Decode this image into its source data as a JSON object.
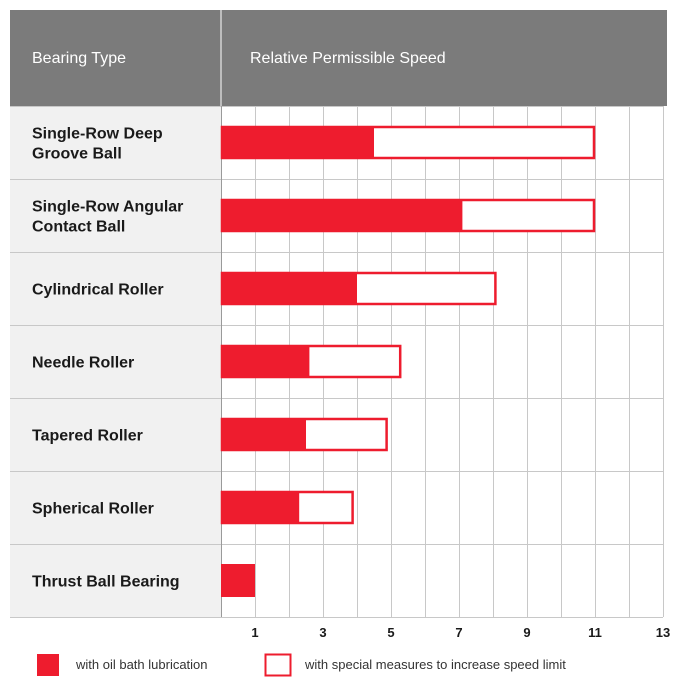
{
  "chart_data": {
    "type": "bar",
    "header": {
      "col1": "Bearing Type",
      "col2": "Relative Permissible Speed"
    },
    "categories": [
      "Single-Row Deep Groove Ball",
      "Single-Row Angular Contact Ball",
      "Cylindrical Roller",
      "Needle Roller",
      "Tapered Roller",
      "Spherical Roller",
      "Thrust Ball Bearing"
    ],
    "series": [
      {
        "name": "with oil bath lubrication",
        "values": [
          4.5,
          7.1,
          4.0,
          2.6,
          2.5,
          2.3,
          1.0
        ]
      },
      {
        "name": "with special measures to increase speed limit",
        "values": [
          11,
          11,
          8.1,
          5.3,
          4.9,
          3.9,
          1.0
        ]
      }
    ],
    "xlim": [
      0,
      13
    ],
    "xticks": [
      1,
      3,
      5,
      7,
      9,
      11,
      13
    ],
    "grid": true,
    "legend": "bottom",
    "colors": {
      "bar": "#ee1c2e",
      "header_bg": "#7b7b7b",
      "label_bg": "#f1f1f1",
      "grid": "#c8c8c8"
    }
  }
}
